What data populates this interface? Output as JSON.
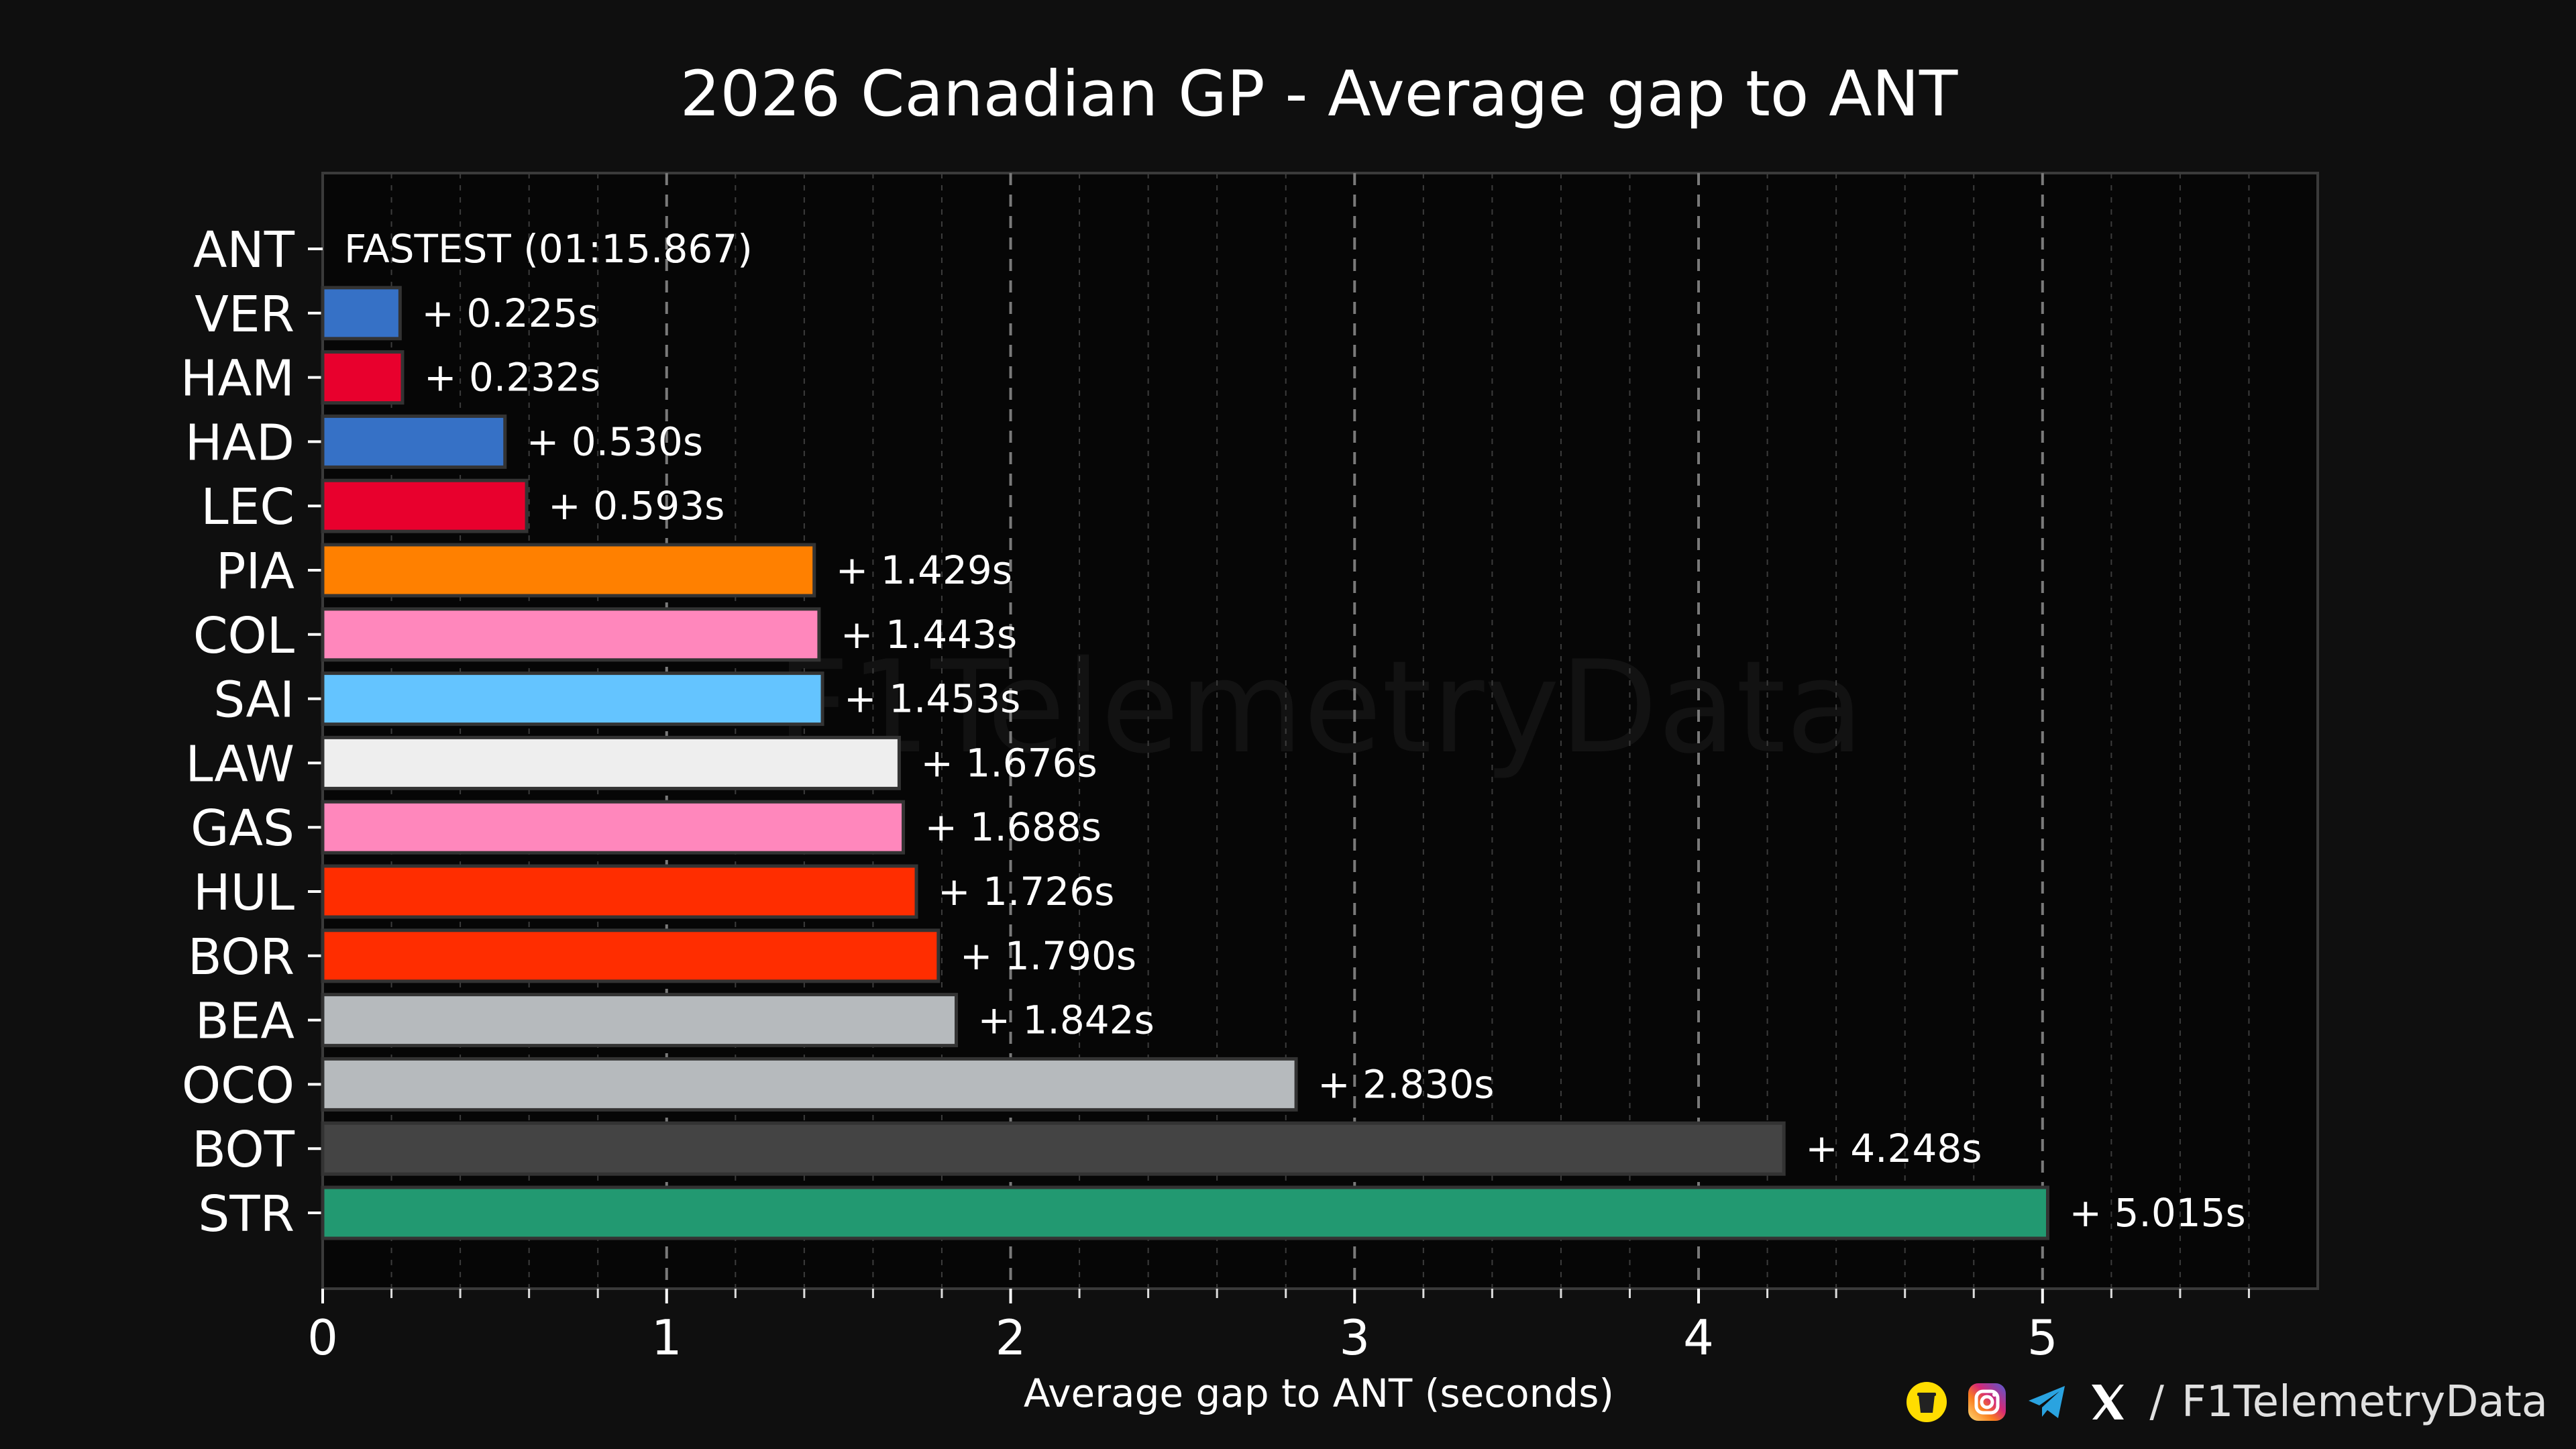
{
  "chart_data": {
    "type": "bar",
    "orientation": "horizontal",
    "title": "2026 Canadian GP - Average gap to ANT",
    "xlabel": "Average gap to ANT (seconds)",
    "ylabel": "",
    "xlim": [
      0,
      5.8
    ],
    "xticks": [
      0,
      1,
      2,
      3,
      4,
      5
    ],
    "grid": "vertical dashed major and minor",
    "legend": "none",
    "watermark": "F1TelemetryData",
    "categories": [
      "ANT",
      "VER",
      "HAM",
      "HAD",
      "LEC",
      "PIA",
      "COL",
      "SAI",
      "LAW",
      "GAS",
      "HUL",
      "BOR",
      "BEA",
      "OCO",
      "BOT",
      "STR"
    ],
    "values": [
      0,
      0.225,
      0.232,
      0.53,
      0.593,
      1.429,
      1.443,
      1.453,
      1.676,
      1.688,
      1.726,
      1.79,
      1.842,
      2.83,
      4.248,
      5.015
    ],
    "labels": [
      "FASTEST (01:15.867)",
      "+ 0.225s",
      "+ 0.232s",
      "+ 0.530s",
      "+ 0.593s",
      "+ 1.429s",
      "+ 1.443s",
      "+ 1.453s",
      "+ 1.676s",
      "+ 1.688s",
      "+ 1.726s",
      "+ 1.790s",
      "+ 1.842s",
      "+ 2.830s",
      "+ 4.248s",
      "+ 5.015s"
    ],
    "colors": [
      "#2d8e73",
      "#3671c6",
      "#e8002d",
      "#3671c6",
      "#e8002d",
      "#ff8000",
      "#ff87bc",
      "#64c4ff",
      "#eeeeee",
      "#ff87bc",
      "#ff2d00",
      "#ff2d00",
      "#b6babd",
      "#b6babd",
      "#444444",
      "#229971"
    ]
  },
  "footer": {
    "icons": [
      "coffee-cup-icon",
      "instagram-icon",
      "telegram-icon",
      "x-logo-icon"
    ],
    "separator": "/",
    "handle": "F1TelemetryData"
  }
}
